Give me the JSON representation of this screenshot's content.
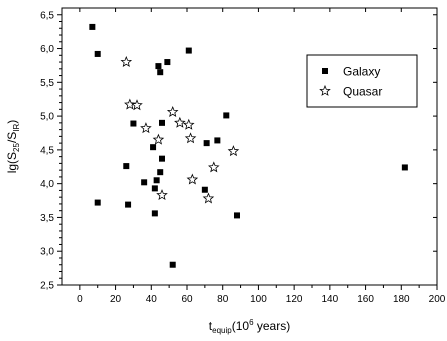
{
  "chart_data": {
    "type": "scatter",
    "xlabel": {
      "main": "t",
      "sub": "equip",
      "rest": "(10",
      "sup": "6",
      "tail": " years)"
    },
    "ylabel": {
      "main": "lg(S",
      "sub1": "25",
      "mid": "/S",
      "sub2": "IR",
      "tail": ")"
    },
    "xlim": [
      -10,
      200
    ],
    "ylim": [
      2.5,
      6.6
    ],
    "x_ticks": [
      0,
      20,
      40,
      60,
      80,
      100,
      120,
      140,
      160,
      180,
      200
    ],
    "x_tick_labels": [
      "0",
      "20",
      "40",
      "60",
      "80",
      "100",
      "120",
      "140",
      "160",
      "180",
      "200"
    ],
    "y_ticks": [
      2.5,
      3.0,
      3.5,
      4.0,
      4.5,
      5.0,
      5.5,
      6.0,
      6.5
    ],
    "y_tick_labels": [
      "2,5",
      "3,0",
      "3,5",
      "4,0",
      "4,5",
      "5,0",
      "5,5",
      "6,0",
      "6,5"
    ],
    "legend_position": "top-right",
    "series": [
      {
        "name": "Galaxy",
        "marker": "square",
        "points": [
          [
            7,
            6.32
          ],
          [
            10,
            5.92
          ],
          [
            10,
            3.72
          ],
          [
            26,
            4.26
          ],
          [
            27,
            3.69
          ],
          [
            30,
            4.89
          ],
          [
            36,
            4.02
          ],
          [
            41,
            4.54
          ],
          [
            42,
            3.93
          ],
          [
            42,
            3.56
          ],
          [
            43,
            4.05
          ],
          [
            44,
            5.74
          ],
          [
            45,
            4.17
          ],
          [
            45,
            5.65
          ],
          [
            46,
            4.9
          ],
          [
            46,
            4.37
          ],
          [
            49,
            5.8
          ],
          [
            52,
            2.8
          ],
          [
            61,
            5.97
          ],
          [
            70,
            3.91
          ],
          [
            71,
            4.6
          ],
          [
            77,
            4.64
          ],
          [
            82,
            5.01
          ],
          [
            88,
            3.53
          ],
          [
            182,
            4.24
          ]
        ]
      },
      {
        "name": "Quasar",
        "marker": "star",
        "points": [
          [
            26,
            5.8
          ],
          [
            28,
            5.17
          ],
          [
            32,
            5.16
          ],
          [
            37,
            4.82
          ],
          [
            44,
            4.65
          ],
          [
            46,
            3.83
          ],
          [
            52,
            5.06
          ],
          [
            56,
            4.9
          ],
          [
            61,
            4.87
          ],
          [
            62,
            4.67
          ],
          [
            63,
            4.06
          ],
          [
            72,
            3.78
          ],
          [
            75,
            4.24
          ],
          [
            86,
            4.48
          ]
        ]
      }
    ]
  }
}
